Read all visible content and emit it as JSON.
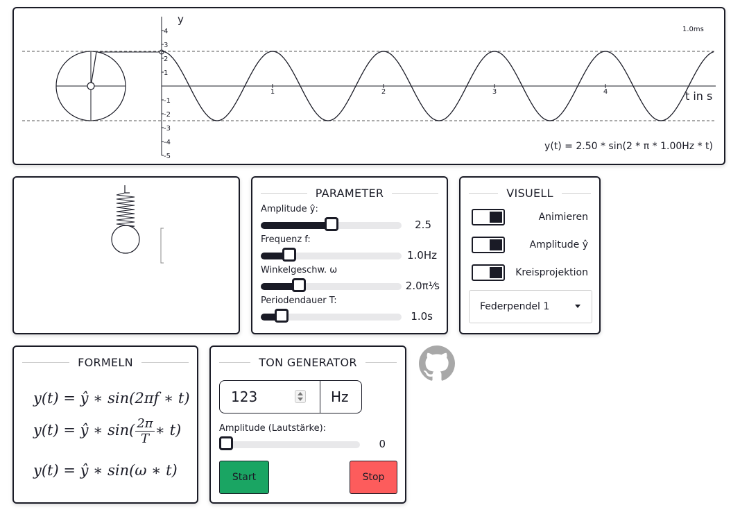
{
  "plot": {
    "y_label": "y",
    "x_label": "t in s",
    "time_readout": "1.0ms",
    "equation": "y(t) = 2.50 * sin(2 * π * 1.00Hz * t)",
    "x_ticks": [
      "1",
      "2",
      "3",
      "4"
    ],
    "y_ticks": [
      "4",
      "3",
      "2",
      "1",
      "-1",
      "-2",
      "-3",
      "-4",
      "-5"
    ],
    "amplitude": 2.5,
    "frequency_hz": 1.0,
    "x_range": [
      0,
      5
    ],
    "y_range": [
      -5,
      5
    ]
  },
  "parameter": {
    "title": "PARAMETER",
    "amplitude": {
      "label": "Amplitude ŷ:",
      "value": "2.5",
      "fraction": 0.5
    },
    "frequency": {
      "label": "Frequenz f:",
      "value": "1.0Hz",
      "fraction": 0.2
    },
    "angular": {
      "label": "Winkelgeschw. ω",
      "value": "2.0π⅟s",
      "fraction": 0.27
    },
    "period": {
      "label": "Periodendauer T:",
      "value": "1.0s",
      "fraction": 0.15
    }
  },
  "visuell": {
    "title": "VISUELL",
    "toggles": [
      {
        "label": "Animieren",
        "on": true
      },
      {
        "label": "Amplitude ŷ",
        "on": true
      },
      {
        "label": "Kreisprojektion",
        "on": true
      }
    ],
    "dropdown": "Federpendel 1"
  },
  "formeln": {
    "title": "FORMELN",
    "line1": "y(t) = ŷ ∗ sin(2πf ∗ t)",
    "line2_left": "y(t) = ŷ ∗ sin(",
    "line2_num": "2π",
    "line2_den": "T",
    "line2_right": "∗ t)",
    "line3": "y(t) = ŷ ∗ sin(ω ∗ t)"
  },
  "ton": {
    "title": "TON GENERATOR",
    "frequency_value": "123",
    "unit": "Hz",
    "amplitude_label": "Amplitude (Lautstärke):",
    "amplitude_value": "0",
    "amplitude_fraction": 0,
    "start_label": "Start",
    "stop_label": "Stop"
  },
  "colors": {
    "dark": "#1a1b26",
    "start": "#1aa563",
    "stop": "#fd5c5c",
    "github": "#a8a8a8"
  },
  "icons": {
    "github": "github-icon"
  }
}
